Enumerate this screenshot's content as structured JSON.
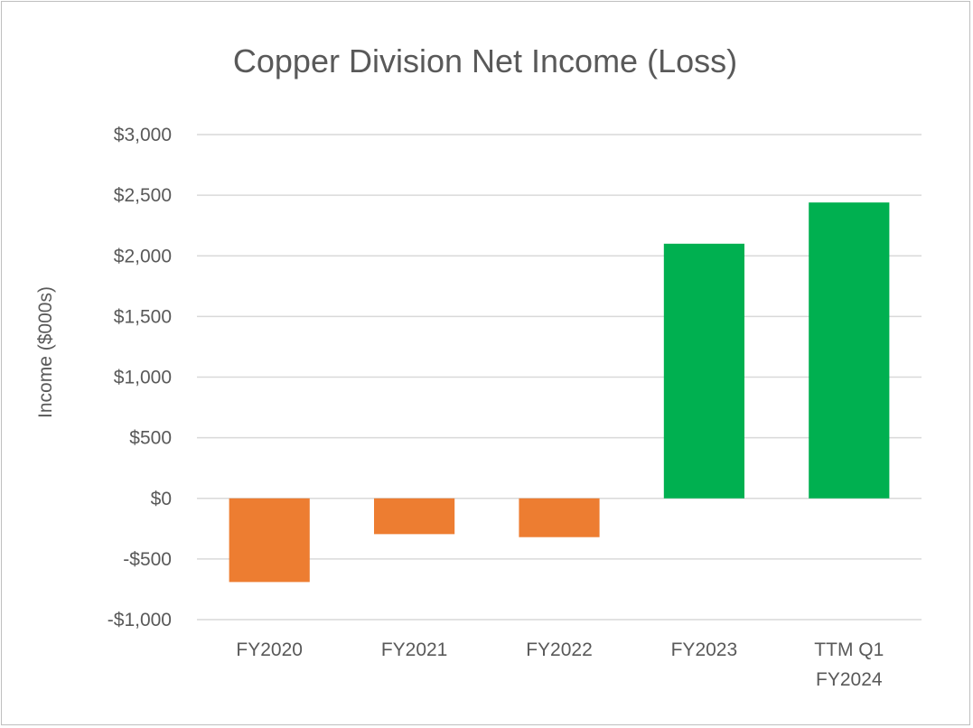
{
  "chart_data": {
    "type": "bar",
    "title": "Copper Division Net Income (Loss)",
    "xlabel": "",
    "ylabel": "Income ($000s)",
    "categories": [
      [
        "FY2020"
      ],
      [
        "FY2021"
      ],
      [
        "FY2022"
      ],
      [
        "FY2023"
      ],
      [
        "TTM Q1",
        "FY2024"
      ]
    ],
    "values": [
      -690,
      -295,
      -320,
      2100,
      2440
    ],
    "ylim": [
      -1000,
      3000
    ],
    "yticks": [
      3000,
      2500,
      2000,
      1500,
      1000,
      500,
      0,
      -500,
      -1000
    ],
    "ytick_labels": [
      "$3,000",
      "$2,500",
      "$2,000",
      "$1,500",
      "$1,000",
      "$500",
      "$0",
      "-$500",
      "-$1,000"
    ],
    "colors": {
      "positive": "#00b050",
      "negative": "#ed7d31"
    },
    "grid": true,
    "legend": "none"
  }
}
